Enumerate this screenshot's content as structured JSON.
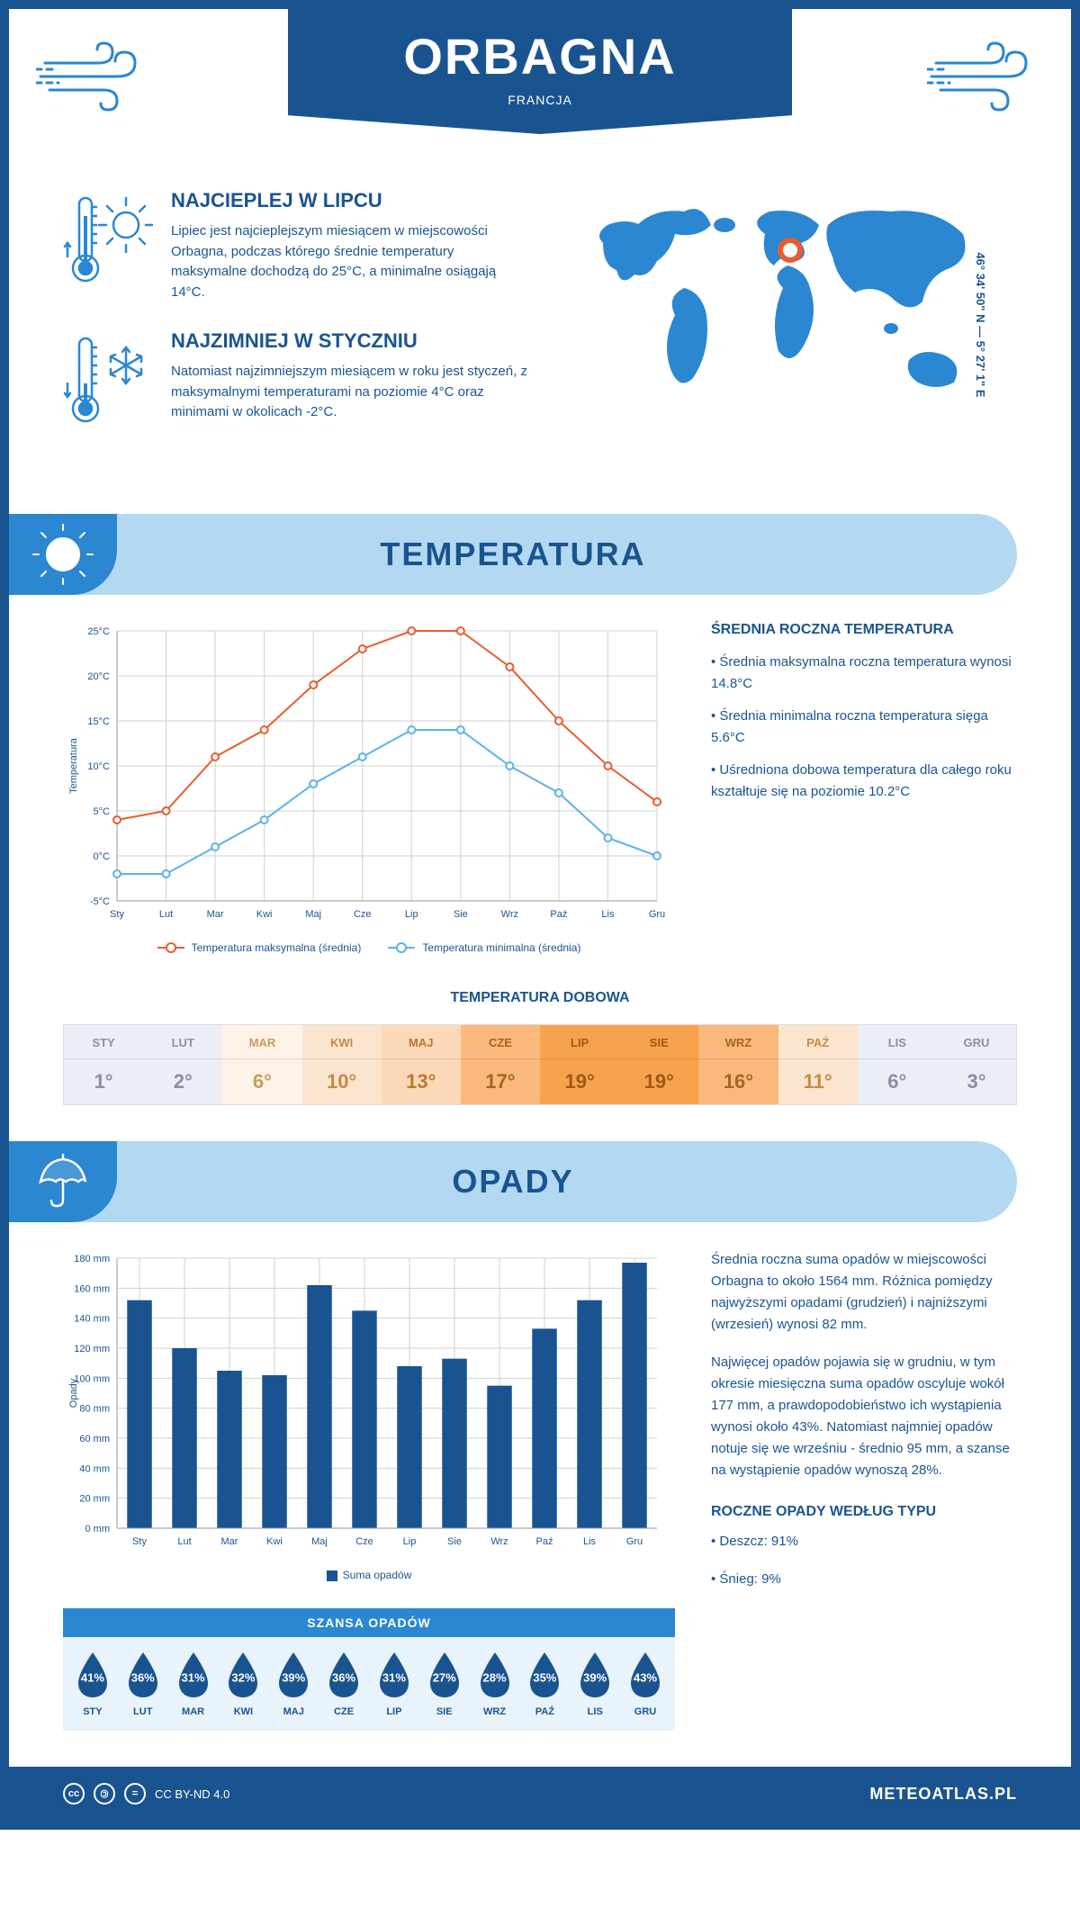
{
  "header": {
    "title": "ORBAGNA",
    "subtitle": "FRANCJA",
    "coords": "46° 34' 50\" N — 5° 27' 1\" E"
  },
  "highlights": {
    "warmest": {
      "title": "NAJCIEPLEJ W LIPCU",
      "text": "Lipiec jest najcieplejszym miesiącem w miejscowości Orbagna, podczas którego średnie temperatury maksymalne dochodzą do 25°C, a minimalne osiągają 14°C."
    },
    "coldest": {
      "title": "NAJZIMNIEJ W STYCZNIU",
      "text": "Natomiast najzimniejszym miesiącem w roku jest styczeń, z maksymalnymi temperaturami na poziomie 4°C oraz minimami w okolicach -2°C."
    }
  },
  "temperature": {
    "section_title": "TEMPERATURA",
    "side_title": "ŚREDNIA ROCZNA TEMPERATURA",
    "bullets": [
      "• Średnia maksymalna roczna temperatura wynosi 14.8°C",
      "• Średnia minimalna roczna temperatura sięga 5.6°C",
      "• Uśredniona dobowa temperatura dla całego roku kształtuje się na poziomie 10.2°C"
    ],
    "chart": {
      "type": "line",
      "months": [
        "Sty",
        "Lut",
        "Mar",
        "Kwi",
        "Maj",
        "Cze",
        "Lip",
        "Sie",
        "Wrz",
        "Paź",
        "Lis",
        "Gru"
      ],
      "max_series": {
        "values": [
          4,
          5,
          11,
          14,
          19,
          23,
          25,
          25,
          21,
          15,
          10,
          6
        ],
        "color": "#e85d2d",
        "label": "Temperatura maksymalna (średnia)"
      },
      "min_series": {
        "values": [
          -2,
          -2,
          1,
          4,
          8,
          11,
          14,
          14,
          10,
          7,
          2,
          0
        ],
        "color": "#5bb3e8",
        "label": "Temperatura minimalna (średnia)"
      },
      "y_min": -5,
      "y_max": 25,
      "y_step": 5,
      "y_tick_labels": [
        "-5°C",
        "0°C",
        "5°C",
        "10°C",
        "15°C",
        "20°C",
        "25°C"
      ],
      "y_title": "Temperatura",
      "grid_color": "#d0d0d0",
      "marker_fill": "#ffffff",
      "marker_radius": 4,
      "line_width": 2
    },
    "daily": {
      "title": "TEMPERATURA DOBOWA",
      "months": [
        "STY",
        "LUT",
        "MAR",
        "KWI",
        "MAJ",
        "CZE",
        "LIP",
        "SIE",
        "WRZ",
        "PAŹ",
        "LIS",
        "GRU"
      ],
      "values": [
        "1°",
        "2°",
        "6°",
        "10°",
        "13°",
        "17°",
        "19°",
        "19°",
        "16°",
        "11°",
        "6°",
        "3°"
      ],
      "bg_colors": [
        "#eceef5",
        "#eceef5",
        "#fdf2e7",
        "#fce5cf",
        "#fbd9b8",
        "#f9b97d",
        "#f7a34e",
        "#f7a34e",
        "#f9b97d",
        "#fce5cf",
        "#eceef5",
        "#eceef5"
      ],
      "text_colors": [
        "#8a8fa3",
        "#8a8fa3",
        "#c99a5f",
        "#c28a45",
        "#b87a30",
        "#a86420",
        "#9e5815",
        "#9e5815",
        "#a86420",
        "#c28a45",
        "#8a8fa3",
        "#8a8fa3"
      ]
    }
  },
  "precipitation": {
    "section_title": "OPADY",
    "para1": "Średnia roczna suma opadów w miejscowości Orbagna to około 1564 mm. Różnica pomiędzy najwyższymi opadami (grudzień) i najniższymi (wrzesień) wynosi 82 mm.",
    "para2": "Najwięcej opadów pojawia się w grudniu, w tym okresie miesięczna suma opadów oscyluje wokół 177 mm, a prawdopodobieństwo ich wystąpienia wynosi około 43%. Natomiast najmniej opadów notuje się we wrześniu - średnio 95 mm, a szanse na wystąpienie opadów wynoszą 28%.",
    "type_title": "ROCZNE OPADY WEDŁUG TYPU",
    "type_bullets": [
      "• Deszcz: 91%",
      "• Śnieg: 9%"
    ],
    "chart": {
      "type": "bar",
      "months": [
        "Sty",
        "Lut",
        "Mar",
        "Kwi",
        "Maj",
        "Cze",
        "Lip",
        "Sie",
        "Wrz",
        "Paź",
        "Lis",
        "Gru"
      ],
      "values": [
        152,
        120,
        105,
        102,
        162,
        145,
        108,
        113,
        95,
        133,
        152,
        177
      ],
      "bar_color": "#1a5490",
      "y_min": 0,
      "y_max": 180,
      "y_step": 20,
      "y_tick_labels": [
        "0 mm",
        "20 mm",
        "40 mm",
        "60 mm",
        "80 mm",
        "100 mm",
        "120 mm",
        "140 mm",
        "160 mm",
        "180 mm"
      ],
      "y_title": "Opady",
      "legend": "Suma opadów",
      "grid_color": "#d0d0d0",
      "bar_width_ratio": 0.55
    },
    "chance": {
      "title": "SZANSA OPADÓW",
      "months": [
        "STY",
        "LUT",
        "MAR",
        "KWI",
        "MAJ",
        "CZE",
        "LIP",
        "SIE",
        "WRZ",
        "PAŹ",
        "LIS",
        "GRU"
      ],
      "values": [
        "41%",
        "36%",
        "31%",
        "32%",
        "39%",
        "36%",
        "31%",
        "27%",
        "28%",
        "35%",
        "39%",
        "43%"
      ],
      "drop_color": "#1a5490",
      "bg_color": "#e8f3fb"
    }
  },
  "footer": {
    "license": "CC BY-ND 4.0",
    "site": "METEOATLAS.PL"
  },
  "colors": {
    "primary": "#1a5490",
    "accent": "#2b87d1",
    "light_blue": "#b3d9f2",
    "orange": "#e85d2d",
    "sky": "#5bb3e8"
  }
}
